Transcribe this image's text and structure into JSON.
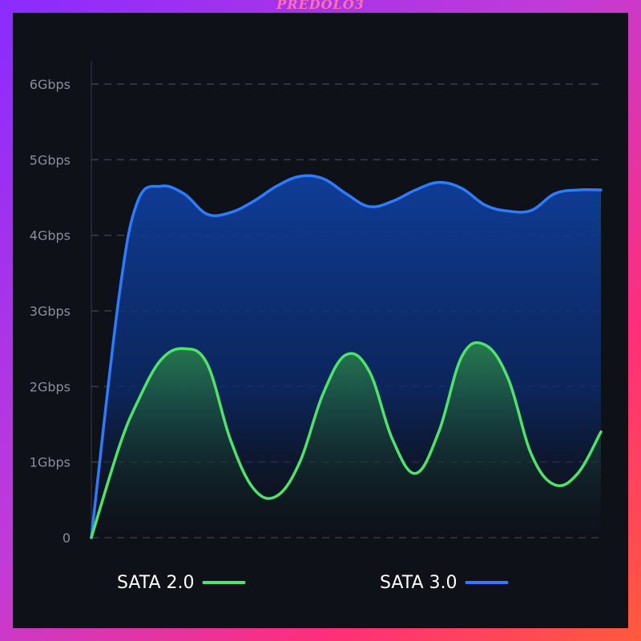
{
  "watermark": "PREDOLO3",
  "chart_data": {
    "type": "area",
    "title": "",
    "xlabel": "",
    "ylabel": "",
    "y_ticks": [
      "0",
      "1Gbps",
      "2Gbps",
      "3Gbps",
      "4Gbps",
      "5Gbps",
      "6Gbps"
    ],
    "ylim": [
      0,
      6
    ],
    "grid": true,
    "legend_position": "bottom",
    "x": [
      0,
      0.6,
      1,
      1.5,
      2,
      2.5,
      3,
      3.5,
      4,
      4.5,
      5,
      5.5,
      6,
      6.5,
      7,
      7.5,
      8,
      8.5,
      9,
      9.5,
      10,
      10.5,
      11
    ],
    "series": [
      {
        "name": "SATA 3.0",
        "color": "#2f7bff",
        "values": [
          0,
          3.2,
          4.45,
          4.65,
          4.55,
          4.28,
          4.3,
          4.45,
          4.65,
          4.78,
          4.75,
          4.55,
          4.38,
          4.45,
          4.6,
          4.7,
          4.62,
          4.4,
          4.32,
          4.33,
          4.55,
          4.6,
          4.6
        ]
      },
      {
        "name": "SATA 2.0",
        "color": "#4fe36a",
        "values": [
          0,
          1.2,
          1.8,
          2.35,
          2.5,
          2.3,
          1.3,
          0.65,
          0.55,
          1.0,
          1.9,
          2.42,
          2.2,
          1.3,
          0.85,
          1.4,
          2.4,
          2.55,
          2.1,
          1.1,
          0.7,
          0.85,
          1.4
        ]
      }
    ]
  }
}
